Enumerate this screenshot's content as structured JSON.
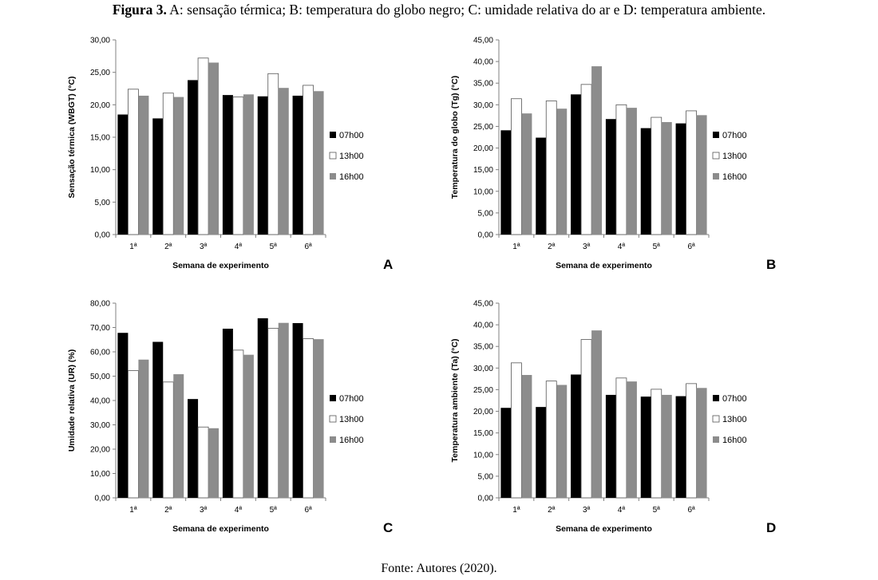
{
  "caption": {
    "label": "Figura 3.",
    "text": " A: sensação térmica; B: temperatura do globo negro; C: umidade relativa do ar e D: temperatura ambiente."
  },
  "source": "Fonte: Autores (2020).",
  "colors": {
    "07h00": "#000000",
    "13h00": "#ffffff",
    "16h00": "#8c8c8c"
  },
  "chart_data": [
    {
      "type": "bar",
      "panel": "A",
      "categories": [
        "1ª",
        "2ª",
        "3ª",
        "4ª",
        "5ª",
        "6ª"
      ],
      "xlabel": "Semana de experimento",
      "ylabel": "Sensação térmica (WBGT) (°C)",
      "ylim": [
        0,
        30
      ],
      "yticks": [
        "0,00",
        "5,00",
        "10,00",
        "15,00",
        "20,00",
        "25,00",
        "30,00"
      ],
      "legend_position": "right",
      "grid": false,
      "series": [
        {
          "name": "07h00",
          "values": [
            18.5,
            17.9,
            23.8,
            21.5,
            21.3,
            21.4
          ]
        },
        {
          "name": "13h00",
          "values": [
            22.4,
            21.8,
            27.2,
            21.2,
            24.8,
            23.0
          ]
        },
        {
          "name": "16h00",
          "values": [
            21.4,
            21.2,
            26.5,
            21.6,
            22.6,
            22.1
          ]
        }
      ]
    },
    {
      "type": "bar",
      "panel": "B",
      "categories": [
        "1ª",
        "2ª",
        "3ª",
        "4ª",
        "5ª",
        "6ª"
      ],
      "xlabel": "Semana de experimento",
      "ylabel": "Temperatura do globo (Tg) (°C)",
      "ylim": [
        0,
        45
      ],
      "yticks": [
        "0,00",
        "5,00",
        "10,00",
        "15,00",
        "20,00",
        "25,00",
        "30,00",
        "35,00",
        "40,00",
        "45,00"
      ],
      "legend_position": "right",
      "grid": false,
      "series": [
        {
          "name": "07h00",
          "values": [
            24.1,
            22.4,
            32.4,
            26.7,
            24.6,
            25.7
          ]
        },
        {
          "name": "13h00",
          "values": [
            31.4,
            30.9,
            34.7,
            30.0,
            27.1,
            28.6
          ]
        },
        {
          "name": "16h00",
          "values": [
            28.0,
            29.1,
            38.9,
            29.3,
            26.0,
            27.6
          ]
        }
      ]
    },
    {
      "type": "bar",
      "panel": "C",
      "categories": [
        "1ª",
        "2ª",
        "3ª",
        "4ª",
        "5ª",
        "6ª"
      ],
      "xlabel": "Semana de experimento",
      "ylabel": "Umidade relativa (UR) (%)",
      "ylim": [
        0,
        80
      ],
      "yticks": [
        "0,00",
        "10,00",
        "20,00",
        "30,00",
        "40,00",
        "50,00",
        "60,00",
        "70,00",
        "80,00"
      ],
      "legend_position": "right",
      "grid": false,
      "series": [
        {
          "name": "07h00",
          "values": [
            67.8,
            64.1,
            40.6,
            69.5,
            73.8,
            71.8
          ]
        },
        {
          "name": "13h00",
          "values": [
            52.3,
            47.6,
            29.1,
            60.7,
            69.7,
            65.4
          ]
        },
        {
          "name": "16h00",
          "values": [
            56.8,
            50.8,
            28.6,
            58.8,
            71.9,
            65.2
          ]
        }
      ]
    },
    {
      "type": "bar",
      "panel": "D",
      "categories": [
        "1ª",
        "2ª",
        "3ª",
        "4ª",
        "5ª",
        "6ª"
      ],
      "xlabel": "Semana de experimento",
      "ylabel": "Temperatura ambiente (Ta) (°C)",
      "ylim": [
        0,
        45
      ],
      "yticks": [
        "0,00",
        "5,00",
        "10,00",
        "15,00",
        "20,00",
        "25,00",
        "30,00",
        "35,00",
        "40,00",
        "45,00"
      ],
      "legend_position": "right",
      "grid": false,
      "series": [
        {
          "name": "07h00",
          "values": [
            20.8,
            21.0,
            28.5,
            23.8,
            23.4,
            23.5
          ]
        },
        {
          "name": "13h00",
          "values": [
            31.2,
            27.0,
            36.6,
            27.7,
            25.1,
            26.4
          ]
        },
        {
          "name": "16h00",
          "values": [
            28.4,
            26.1,
            38.7,
            26.9,
            23.8,
            25.4
          ]
        }
      ]
    }
  ]
}
